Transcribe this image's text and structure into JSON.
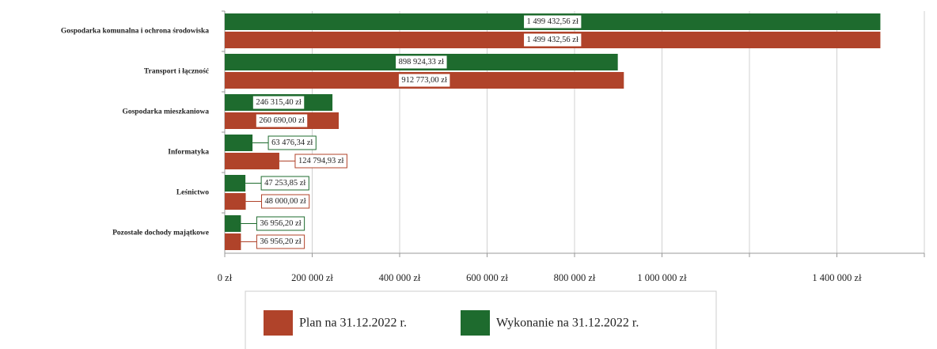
{
  "chart_data": {
    "type": "hbar",
    "categories": [
      "Gospodarka komunalna i ochrona środowiska",
      "Transport i łączność",
      "Gospodarka mieszkaniowa",
      "Informatyka",
      "Leśnictwo",
      "Pozostałe dochody majątkowe"
    ],
    "series": [
      {
        "name": "Plan na 31.12.2022 r.",
        "color": "#b0432a",
        "values": [
          1499432.56,
          912773.0,
          260690.0,
          124794.93,
          48000.0,
          36956.2
        ],
        "value_labels": [
          "1 499 432,56 zł",
          "912 773,00 zł",
          "260 690,00 zł",
          "124 794,93 zł",
          "48 000,00 zł",
          "36 956,20 zł"
        ]
      },
      {
        "name": "Wykonanie na 31.12.2022 r.",
        "color": "#1e6b2e",
        "values": [
          1499432.56,
          898924.33,
          246315.4,
          63476.34,
          47253.85,
          36956.2
        ],
        "value_labels": [
          "1 499 432,56 zł",
          "898 924,33 zł",
          "246 315,40 zł",
          "63 476,34 zł",
          "47 253,85 zł",
          "36 956,20 zł"
        ]
      }
    ],
    "xlim": [
      0,
      1600000
    ],
    "xticks": [
      {
        "value": 0,
        "label": "0 zł"
      },
      {
        "value": 200000,
        "label": "200 000 zł"
      },
      {
        "value": 400000,
        "label": "400 000 zł"
      },
      {
        "value": 600000,
        "label": "600 000 zł"
      },
      {
        "value": 800000,
        "label": "800 000 zł"
      },
      {
        "value": 1000000,
        "label": "1 000 000 zł"
      },
      {
        "value": 1200000,
        "label": null
      },
      {
        "value": 1400000,
        "label": "1 400 000 zł"
      },
      {
        "value": 1600000,
        "label": null
      }
    ],
    "grid": true,
    "legend": "bottom"
  }
}
